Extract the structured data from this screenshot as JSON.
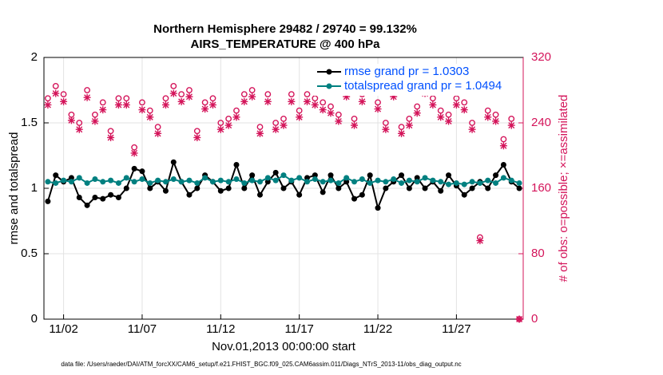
{
  "chart_data": {
    "type": "line",
    "title": "Northern Hemisphere 29482 / 29740 = 99.132%",
    "subtitle": "AIRS_TEMPERATURE @ 400 hPa",
    "xlabel": "Nov.01,2013 00:00:00 start",
    "ylabel": "rmse and totalspread",
    "y2label": "# of obs: o=possible; ×=assimilated",
    "footnote": "data file: /Users/raeder/DAI/ATM_forcXX/CAM6_setup/f.e21.FHIST_BGC.f09_025.CAM6assim.011/Diags_NTrS_2013-11/obs_diag_output.nc",
    "grid": true,
    "legend": "upper right",
    "legend_text_color": "#0050ff",
    "xlim": [
      -0.25,
      30.25
    ],
    "xticks": [
      {
        "value": 1,
        "label": "11/02"
      },
      {
        "value": 6,
        "label": "11/07"
      },
      {
        "value": 11,
        "label": "11/12"
      },
      {
        "value": 16,
        "label": "11/17"
      },
      {
        "value": 21,
        "label": "11/22"
      },
      {
        "value": 26,
        "label": "11/27"
      }
    ],
    "ylim": [
      0,
      2
    ],
    "yticks": [
      0,
      0.5,
      1,
      1.5,
      2
    ],
    "y2lim": [
      0,
      320
    ],
    "y2ticks": [
      0,
      80,
      160,
      240,
      320
    ],
    "y2color": "#d4145a",
    "x": [
      0,
      0.5,
      1,
      1.5,
      2,
      2.5,
      3,
      3.5,
      4,
      4.5,
      5,
      5.5,
      6,
      6.5,
      7,
      7.5,
      8,
      8.5,
      9,
      9.5,
      10,
      10.5,
      11,
      11.5,
      12,
      12.5,
      13,
      13.5,
      14,
      14.5,
      15,
      15.5,
      16,
      16.5,
      17,
      17.5,
      18,
      18.5,
      19,
      19.5,
      20,
      20.5,
      21,
      21.5,
      22,
      22.5,
      23,
      23.5,
      24,
      24.5,
      25,
      25.5,
      26,
      26.5,
      27,
      27.5,
      28,
      28.5,
      29,
      29.5,
      30
    ],
    "series": [
      {
        "name": "rmse grand pr = 1.0303",
        "color": "#000000",
        "marker": "filled-circle",
        "line": true,
        "values": [
          0.9,
          1.1,
          1.05,
          1.08,
          0.93,
          0.87,
          0.93,
          0.92,
          0.95,
          0.93,
          1.0,
          1.15,
          1.13,
          1.0,
          1.05,
          0.98,
          1.2,
          1.05,
          0.95,
          1.0,
          1.1,
          1.05,
          0.98,
          1.0,
          1.18,
          1.0,
          1.1,
          0.95,
          1.05,
          1.12,
          1.0,
          1.05,
          0.95,
          1.08,
          1.1,
          0.97,
          1.1,
          1.0,
          1.05,
          0.92,
          0.95,
          1.1,
          0.85,
          1.0,
          1.05,
          1.1,
          1.0,
          1.08,
          1.0,
          1.05,
          0.98,
          1.1,
          1.02,
          0.95,
          1.0,
          1.05,
          1.0,
          1.1,
          1.18,
          1.05,
          1.0
        ]
      },
      {
        "name": "totalspread grand pr = 1.0494",
        "color": "#008080",
        "marker": "filled-circle",
        "line": true,
        "values": [
          1.05,
          1.04,
          1.06,
          1.05,
          1.08,
          1.04,
          1.07,
          1.05,
          1.06,
          1.04,
          1.08,
          1.05,
          1.07,
          1.04,
          1.06,
          1.05,
          1.07,
          1.05,
          1.06,
          1.04,
          1.08,
          1.05,
          1.06,
          1.05,
          1.07,
          1.04,
          1.06,
          1.05,
          1.08,
          1.06,
          1.1,
          1.06,
          1.08,
          1.05,
          1.07,
          1.05,
          1.06,
          1.04,
          1.08,
          1.05,
          1.07,
          1.04,
          1.06,
          1.05,
          1.07,
          1.04,
          1.06,
          1.05,
          1.08,
          1.06,
          1.05,
          1.03,
          1.04,
          1.03,
          1.05,
          1.04,
          1.06,
          1.04,
          1.08,
          1.06,
          1.04
        ]
      },
      {
        "color": "#d4145a",
        "marker": "open-circle",
        "line": false,
        "axis": "y2",
        "values": [
          270,
          285,
          275,
          250,
          240,
          280,
          250,
          265,
          230,
          270,
          270,
          210,
          265,
          255,
          235,
          270,
          285,
          275,
          280,
          230,
          265,
          270,
          240,
          245,
          255,
          275,
          280,
          235,
          275,
          240,
          245,
          275,
          255,
          275,
          270,
          265,
          260,
          250,
          280,
          245,
          275,
          290,
          265,
          240,
          280,
          235,
          245,
          260,
          285,
          270,
          255,
          250,
          270,
          265,
          240,
          100,
          255,
          250,
          220,
          245,
          0
        ]
      },
      {
        "color": "#d4145a",
        "marker": "asterisk",
        "line": false,
        "axis": "y2",
        "values": [
          262,
          276,
          266,
          243,
          232,
          271,
          242,
          256,
          222,
          262,
          262,
          203,
          256,
          247,
          227,
          262,
          276,
          266,
          272,
          222,
          257,
          262,
          232,
          237,
          247,
          266,
          272,
          227,
          266,
          232,
          237,
          266,
          247,
          266,
          262,
          256,
          252,
          242,
          272,
          237,
          266,
          281,
          257,
          232,
          272,
          227,
          237,
          252,
          276,
          262,
          247,
          242,
          262,
          256,
          232,
          96,
          247,
          242,
          212,
          237,
          0
        ]
      }
    ]
  }
}
